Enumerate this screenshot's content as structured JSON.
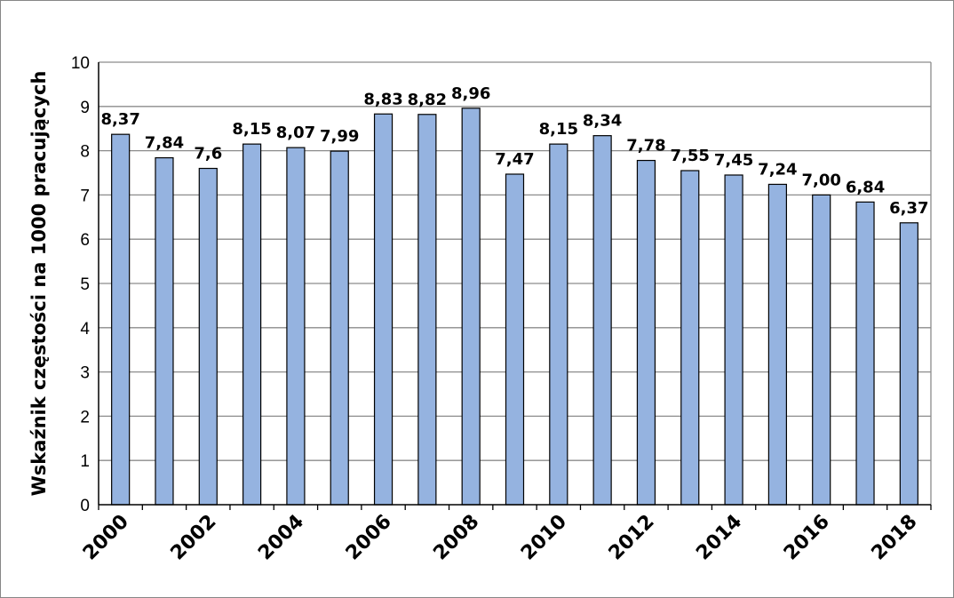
{
  "chart_data": {
    "type": "bar",
    "ylabel": "Wskaźnik częstości na 1000 pracujących",
    "xlabel": "",
    "ylim": [
      0,
      10
    ],
    "yticks": [
      "0",
      "1",
      "2",
      "3",
      "4",
      "5",
      "6",
      "7",
      "8",
      "9",
      "10"
    ],
    "grid": true,
    "categories": [
      "2000",
      "2001",
      "2002",
      "2003",
      "2004",
      "2005",
      "2006",
      "2007",
      "2008",
      "2009",
      "2010",
      "2011",
      "2012",
      "2013",
      "2014",
      "2015",
      "2016",
      "2017",
      "2018"
    ],
    "xtick_labels": [
      "2000",
      "",
      "2002",
      "",
      "2004",
      "",
      "2006",
      "",
      "2008",
      "",
      "2010",
      "",
      "2012",
      "",
      "2014",
      "",
      "2016",
      "",
      "2018"
    ],
    "values": [
      8.37,
      7.84,
      7.6,
      8.15,
      8.07,
      7.99,
      8.83,
      8.82,
      8.96,
      7.47,
      8.15,
      8.34,
      7.78,
      7.55,
      7.45,
      7.24,
      7.0,
      6.84,
      6.37
    ],
    "data_labels": [
      "8,37",
      "7,84",
      "7,6",
      "8,15",
      "8,07",
      "7,99",
      "8,83",
      "8,82",
      "8,96",
      "7,47",
      "8,15",
      "8,34",
      "7,78",
      "7,55",
      "7,45",
      "7,24",
      "7,00",
      "6,84",
      "6,37"
    ],
    "colors": {
      "bar_fill": "#95b3e0",
      "bar_stroke": "#000000",
      "grid": "#8c8c8c",
      "axis": "#000000",
      "frame": "#868686"
    }
  }
}
